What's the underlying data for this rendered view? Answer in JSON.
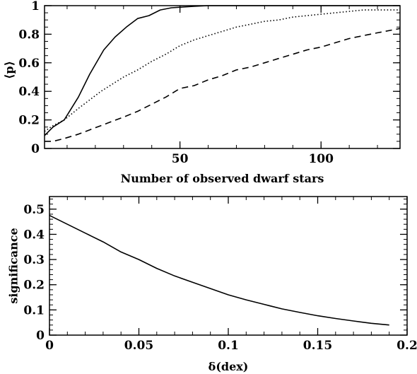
{
  "chart_data": [
    {
      "type": "line",
      "title": "",
      "xlabel": "Number of observed dwarf stars",
      "ylabel": "⟨p⟩",
      "xlim": [
        2,
        128
      ],
      "ylim": [
        0,
        1
      ],
      "xticks": [
        50,
        100
      ],
      "yticks": [
        0,
        0.2,
        0.4,
        0.6,
        0.8,
        1
      ],
      "tick_labels_x": [
        "50",
        "100"
      ],
      "tick_labels_y": [
        "0",
        "0.2",
        "0.4",
        "0.6",
        "0.8",
        "1"
      ],
      "grid": false,
      "series": [
        {
          "style": "solid",
          "x": [
            2,
            5,
            9,
            14,
            18,
            23,
            27,
            31,
            35,
            39,
            43,
            47,
            51,
            55,
            60,
            70,
            80,
            90,
            100,
            110,
            128
          ],
          "y": [
            0.09,
            0.15,
            0.2,
            0.36,
            0.52,
            0.69,
            0.78,
            0.85,
            0.91,
            0.93,
            0.97,
            0.985,
            0.99,
            0.995,
            1.0,
            1.0,
            1.0,
            1.0,
            1.0,
            1.0,
            1.0
          ]
        },
        {
          "style": "dotted",
          "x": [
            2,
            5,
            9,
            14,
            18,
            22,
            26,
            30,
            35,
            40,
            45,
            50,
            55,
            60,
            65,
            70,
            75,
            80,
            85,
            90,
            95,
            100,
            105,
            110,
            115,
            120,
            128
          ],
          "y": [
            0.12,
            0.16,
            0.2,
            0.28,
            0.34,
            0.4,
            0.45,
            0.5,
            0.55,
            0.61,
            0.66,
            0.72,
            0.76,
            0.79,
            0.82,
            0.85,
            0.87,
            0.89,
            0.9,
            0.92,
            0.93,
            0.94,
            0.95,
            0.96,
            0.97,
            0.97,
            0.97
          ]
        },
        {
          "style": "dashed",
          "x": [
            2,
            5,
            9,
            14,
            18,
            22,
            26,
            30,
            35,
            40,
            45,
            50,
            55,
            60,
            65,
            70,
            75,
            80,
            85,
            90,
            95,
            100,
            105,
            110,
            115,
            120,
            128
          ],
          "y": [
            0.05,
            0.05,
            0.07,
            0.1,
            0.13,
            0.16,
            0.19,
            0.22,
            0.26,
            0.31,
            0.36,
            0.42,
            0.44,
            0.48,
            0.51,
            0.55,
            0.57,
            0.6,
            0.63,
            0.66,
            0.69,
            0.71,
            0.74,
            0.77,
            0.79,
            0.81,
            0.84
          ]
        }
      ]
    },
    {
      "type": "line",
      "title": "",
      "xlabel": "δ(dex)",
      "ylabel": "significance",
      "xlim": [
        0,
        0.2
      ],
      "ylim": [
        0,
        0.55
      ],
      "xticks": [
        0,
        0.05,
        0.1,
        0.15,
        0.2
      ],
      "yticks": [
        0,
        0.1,
        0.2,
        0.3,
        0.4,
        0.5
      ],
      "tick_labels_x": [
        "0",
        "0.05",
        "0.1",
        "0.15",
        "0.2"
      ],
      "tick_labels_y": [
        "0",
        "0.1",
        "0.2",
        "0.3",
        "0.4",
        "0.5"
      ],
      "grid": false,
      "series": [
        {
          "style": "solid",
          "x": [
            0,
            0.01,
            0.02,
            0.03,
            0.04,
            0.05,
            0.06,
            0.07,
            0.08,
            0.09,
            0.1,
            0.11,
            0.12,
            0.13,
            0.14,
            0.15,
            0.16,
            0.17,
            0.18,
            0.19
          ],
          "y": [
            0.475,
            0.44,
            0.405,
            0.37,
            0.33,
            0.3,
            0.265,
            0.235,
            0.21,
            0.185,
            0.16,
            0.14,
            0.122,
            0.104,
            0.09,
            0.077,
            0.066,
            0.056,
            0.047,
            0.04
          ]
        }
      ]
    }
  ]
}
